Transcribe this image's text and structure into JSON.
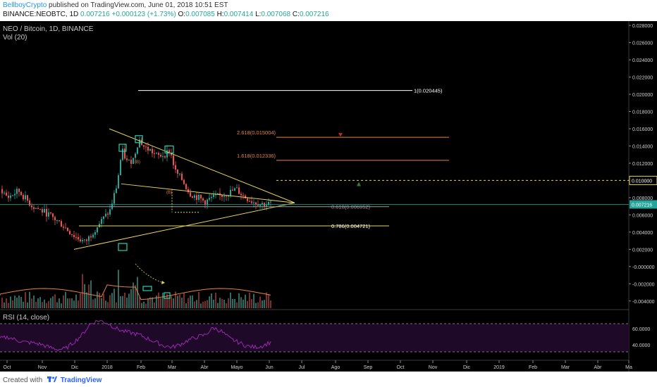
{
  "header": {
    "author": "BellboyCrypto",
    "published_text": "published on TradingView.com, June 01, 2018 10:51 EST",
    "symbol": "BINANCE:NEOBTC, 1D",
    "last": "0.007216",
    "change": "+0.000123 (+1.73%)",
    "o_label": "O:",
    "o_value": "0.007085",
    "h_label": "H:",
    "h_value": "0.007414",
    "l_label": "L:",
    "l_value": "0.007068",
    "c_label": "C:",
    "c_value": "0.007216"
  },
  "pane": {
    "title": "NEO / Bitcoin, 1D, BINANCE",
    "vol_label": "Vol (20)",
    "rsi_label": "RSI (14, close)"
  },
  "footer": {
    "created_with": "Created with",
    "brand": "TradingView"
  },
  "colors": {
    "background": "#000000",
    "up": "#26a69a",
    "down": "#ef5350",
    "trendline": "#e6d35a",
    "fib_line": "#ffffff",
    "fib_ext": "#e8833a",
    "rsi_line": "#9c27b0",
    "rsi_band": "#1e0a28",
    "price_marker": "#26a69a"
  },
  "chart_data": {
    "type": "candlestick",
    "x_ticks": [
      "Oct",
      "Nov",
      "Dic",
      "2018",
      "Feb",
      "Mar",
      "Abr",
      "Mayo",
      "Jun",
      "Jul",
      "Ago",
      "Sep",
      "Oct",
      "Nov",
      "Dic",
      "2019",
      "Feb",
      "Mar",
      "Abr",
      "Ma"
    ],
    "y_ticks": [
      "0.028000",
      "0.026000",
      "0.024000",
      "0.022000",
      "0.020000",
      "0.018000",
      "0.016000",
      "0.014000",
      "0.012000",
      "0.010000",
      "0.008000",
      "0.006000",
      "0.004000",
      "0.002000",
      "-0.000000",
      "-0.002000",
      "-0.004000"
    ],
    "rsi_ticks": [
      "60.0000",
      "40.0000"
    ],
    "y_range": [
      -0.005,
      0.0285
    ],
    "price_markers": [
      "0.010000",
      "0.007216"
    ],
    "annotations": [
      {
        "label": "1(0.020445)",
        "value": 0.020445
      },
      {
        "label": "2.618(0.015004)",
        "value": 0.015004
      },
      {
        "label": "1.618(0.012336)",
        "value": 0.012336
      },
      {
        "label": "0.618(0.006952)",
        "value": 0.006952
      },
      {
        "label": "0.786(0.004721)",
        "value": 0.004721
      }
    ],
    "wave_labels": [
      "(B)",
      "(B)"
    ],
    "price_path": [
      [
        0,
        0.009
      ],
      [
        10,
        0.008
      ],
      [
        25,
        0.0088
      ],
      [
        45,
        0.007
      ],
      [
        65,
        0.0062
      ],
      [
        85,
        0.005
      ],
      [
        105,
        0.0035
      ],
      [
        120,
        0.0028
      ],
      [
        135,
        0.0045
      ],
      [
        155,
        0.0065
      ],
      [
        165,
        0.0095
      ],
      [
        172,
        0.0135
      ],
      [
        180,
        0.012
      ],
      [
        188,
        0.0125
      ],
      [
        196,
        0.0148
      ],
      [
        204,
        0.0138
      ],
      [
        212,
        0.0135
      ],
      [
        222,
        0.0128
      ],
      [
        232,
        0.013
      ],
      [
        240,
        0.0135
      ],
      [
        248,
        0.011
      ],
      [
        258,
        0.01
      ],
      [
        268,
        0.0085
      ],
      [
        280,
        0.008
      ],
      [
        290,
        0.0075
      ],
      [
        300,
        0.008
      ],
      [
        312,
        0.0082
      ],
      [
        322,
        0.0085
      ],
      [
        334,
        0.009
      ],
      [
        344,
        0.0082
      ],
      [
        356,
        0.0076
      ],
      [
        368,
        0.0073
      ],
      [
        378,
        0.0072
      ],
      [
        384,
        0.0074
      ]
    ],
    "rsi_values": [
      50,
      52,
      48,
      45,
      44,
      42,
      38,
      35,
      36,
      45,
      55,
      70,
      75,
      72,
      65,
      60,
      58,
      55,
      50,
      45,
      40,
      38,
      42,
      48,
      52,
      55,
      65,
      60,
      50,
      45,
      40,
      38,
      40,
      45
    ]
  }
}
